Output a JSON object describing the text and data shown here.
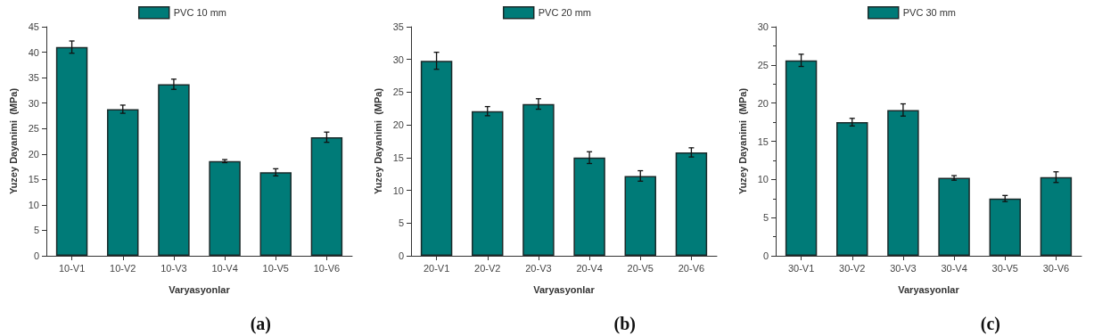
{
  "chart_data": [
    {
      "type": "bar",
      "xlabel": "Varyasyonlar",
      "ylabel": "Yuzey Dayanimi  (MPa)",
      "categories": [
        "10-V1",
        "10-V2",
        "10-V3",
        "10-V4",
        "10-V5",
        "10-V6"
      ],
      "series": [
        {
          "name": "PVC 10 mm",
          "color": "#007b78",
          "values": [
            41.0,
            28.8,
            33.7,
            18.6,
            16.4,
            23.3
          ],
          "errors": [
            1.2,
            0.8,
            1.0,
            0.3,
            0.7,
            1.0
          ]
        }
      ],
      "ylim": [
        0,
        45
      ],
      "yticks": [
        0,
        5,
        10,
        15,
        20,
        25,
        30,
        35,
        40,
        45
      ],
      "legend": "top",
      "grid": false,
      "annotations": [
        "(a)"
      ]
    },
    {
      "type": "bar",
      "xlabel": "Varyasyonlar",
      "ylabel": "Yuzey Dayanimi  (MPa)",
      "categories": [
        "20-V1",
        "20-V2",
        "20-V3",
        "20-V4",
        "20-V5",
        "20-V6"
      ],
      "series": [
        {
          "name": "PVC 20 mm",
          "color": "#007b78",
          "values": [
            29.8,
            22.1,
            23.2,
            15.0,
            12.2,
            15.8
          ],
          "errors": [
            1.3,
            0.7,
            0.8,
            0.9,
            0.8,
            0.7
          ]
        }
      ],
      "ylim": [
        0,
        35
      ],
      "yticks": [
        0,
        5,
        10,
        15,
        20,
        25,
        30,
        35
      ],
      "legend": "top",
      "grid": false,
      "annotations": [
        "(b)"
      ]
    },
    {
      "type": "bar",
      "xlabel": "Varyasyonlar",
      "ylabel": "Yuzey Dayanimi  (MPa)",
      "categories": [
        "30-V1",
        "30-V2",
        "30-V3",
        "30-V4",
        "30-V5",
        "30-V6"
      ],
      "series": [
        {
          "name": "PVC 30 mm",
          "color": "#007b78",
          "values": [
            25.6,
            17.5,
            19.1,
            10.2,
            7.5,
            10.3
          ],
          "errors": [
            0.8,
            0.5,
            0.8,
            0.3,
            0.4,
            0.7
          ]
        }
      ],
      "ylim": [
        0,
        30
      ],
      "yticks": [
        0,
        5,
        10,
        15,
        20,
        25,
        30
      ],
      "legend": "top",
      "grid": false,
      "annotations": [
        "(c)"
      ]
    }
  ]
}
